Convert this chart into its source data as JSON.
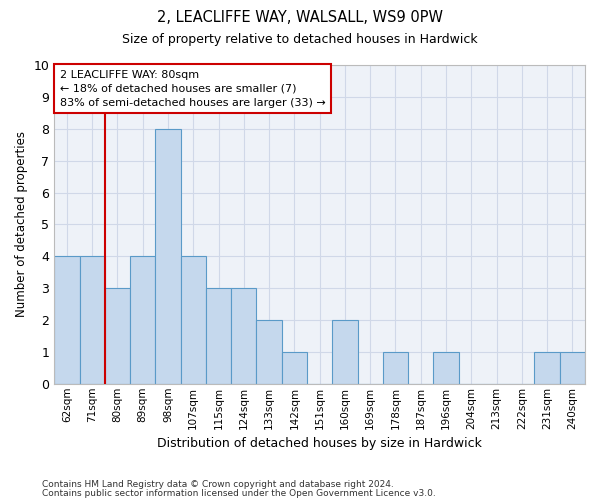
{
  "title1": "2, LEACLIFFE WAY, WALSALL, WS9 0PW",
  "title2": "Size of property relative to detached houses in Hardwick",
  "xlabel": "Distribution of detached houses by size in Hardwick",
  "ylabel": "Number of detached properties",
  "categories": [
    "62sqm",
    "71sqm",
    "80sqm",
    "89sqm",
    "98sqm",
    "107sqm",
    "115sqm",
    "124sqm",
    "133sqm",
    "142sqm",
    "151sqm",
    "160sqm",
    "169sqm",
    "178sqm",
    "187sqm",
    "196sqm",
    "204sqm",
    "213sqm",
    "222sqm",
    "231sqm",
    "240sqm"
  ],
  "values": [
    4,
    4,
    3,
    4,
    8,
    4,
    3,
    3,
    2,
    1,
    0,
    2,
    0,
    1,
    0,
    1,
    0,
    0,
    0,
    1,
    1
  ],
  "bar_color": "#c5d8ed",
  "bar_edge_color": "#5a9ac8",
  "vline_color": "#cc0000",
  "vline_index": 2,
  "annotation_text": "2 LEACLIFFE WAY: 80sqm\n← 18% of detached houses are smaller (7)\n83% of semi-detached houses are larger (33) →",
  "annotation_box_color": "white",
  "annotation_box_edge": "#cc0000",
  "ylim": [
    0,
    10
  ],
  "yticks": [
    0,
    1,
    2,
    3,
    4,
    5,
    6,
    7,
    8,
    9,
    10
  ],
  "grid_color": "#d0d8e8",
  "background_color": "#eef2f8",
  "footer1": "Contains HM Land Registry data © Crown copyright and database right 2024.",
  "footer2": "Contains public sector information licensed under the Open Government Licence v3.0."
}
